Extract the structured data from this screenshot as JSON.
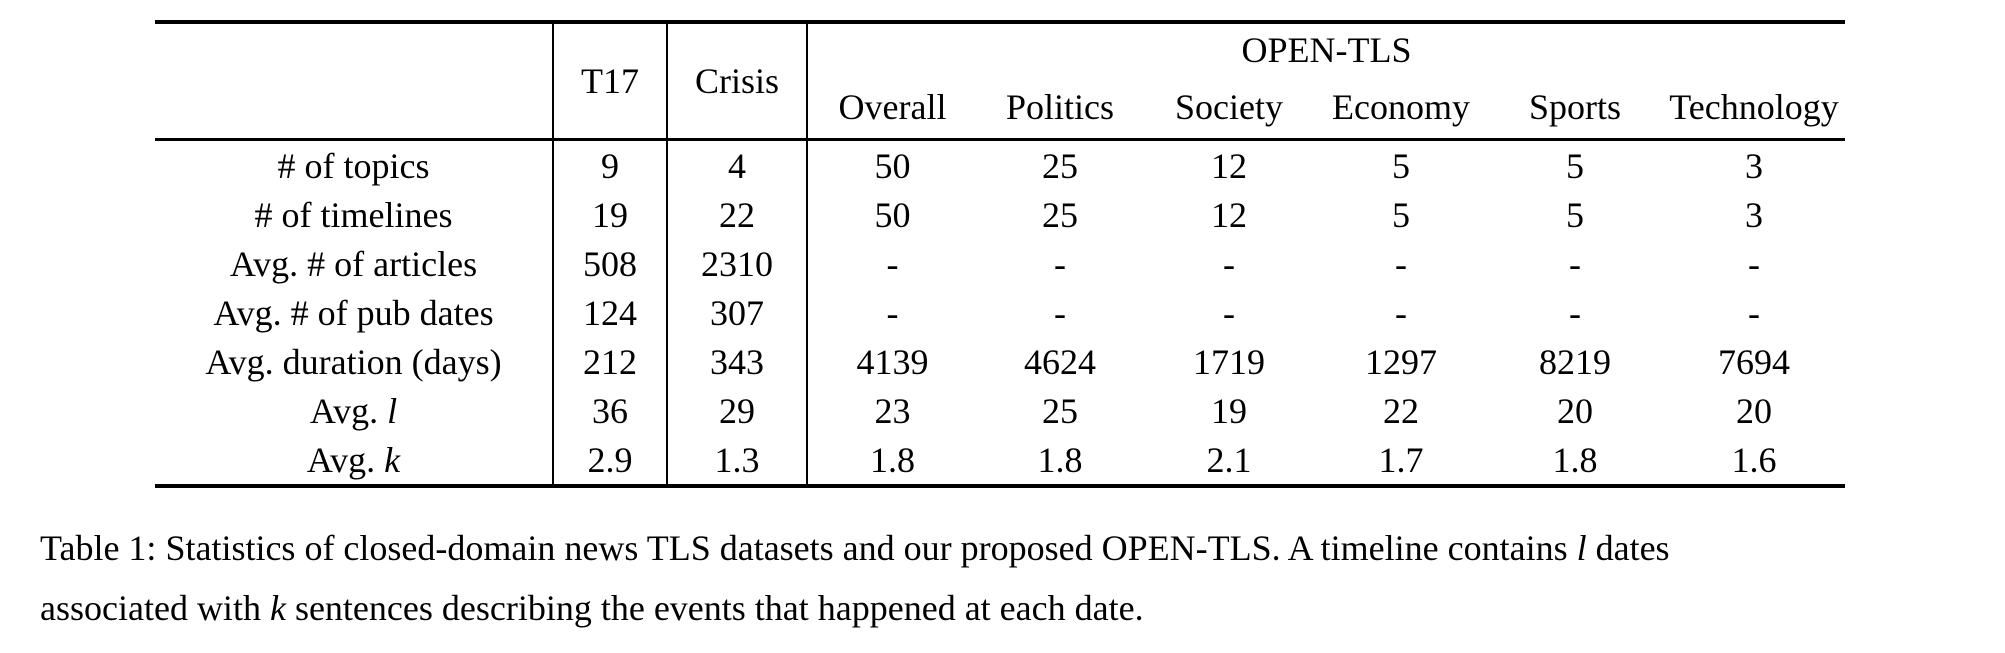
{
  "page": {
    "background_color": "#ffffff",
    "text_color": "#000000"
  },
  "table": {
    "corner_label": "",
    "col_t17": "T17",
    "col_crisis": "Crisis",
    "group_label": "OPEN-TLS",
    "sub_columns": [
      "Overall",
      "Politics",
      "Society",
      "Economy",
      "Sports",
      "Technology"
    ],
    "rows": [
      {
        "label_parts": [
          {
            "t": "# of topics"
          }
        ],
        "values": [
          "9",
          "4",
          "50",
          "25",
          "12",
          "5",
          "5",
          "3"
        ]
      },
      {
        "label_parts": [
          {
            "t": "# of timelines"
          }
        ],
        "values": [
          "19",
          "22",
          "50",
          "25",
          "12",
          "5",
          "5",
          "3"
        ]
      },
      {
        "label_parts": [
          {
            "t": "Avg. # of articles"
          }
        ],
        "values": [
          "508",
          "2310",
          "-",
          "-",
          "-",
          "-",
          "-",
          "-"
        ]
      },
      {
        "label_parts": [
          {
            "t": "Avg. # of pub dates"
          }
        ],
        "values": [
          "124",
          "307",
          "-",
          "-",
          "-",
          "-",
          "-",
          "-"
        ]
      },
      {
        "label_parts": [
          {
            "t": "Avg. duration (days)"
          }
        ],
        "values": [
          "212",
          "343",
          "4139",
          "4624",
          "1719",
          "1297",
          "8219",
          "7694"
        ]
      },
      {
        "label_parts": [
          {
            "t": "Avg. "
          },
          {
            "t": "l",
            "i": true
          }
        ],
        "values": [
          "36",
          "29",
          "23",
          "25",
          "19",
          "22",
          "20",
          "20"
        ]
      },
      {
        "label_parts": [
          {
            "t": "Avg. "
          },
          {
            "t": "k",
            "i": true
          }
        ],
        "values": [
          "2.9",
          "1.3",
          "1.8",
          "1.8",
          "2.1",
          "1.7",
          "1.8",
          "1.6"
        ]
      }
    ]
  },
  "caption": {
    "lines": [
      {
        "parts": [
          {
            "t": "Table 1: Statistics of closed-domain news TLS datasets and our proposed OPEN-TLS. A timeline contains "
          },
          {
            "t": "l",
            "i": true
          },
          {
            "t": " dates"
          }
        ]
      },
      {
        "parts": [
          {
            "t": "associated with "
          },
          {
            "t": "k",
            "i": true
          },
          {
            "t": " sentences describing the events that happened at each date."
          }
        ]
      }
    ]
  }
}
